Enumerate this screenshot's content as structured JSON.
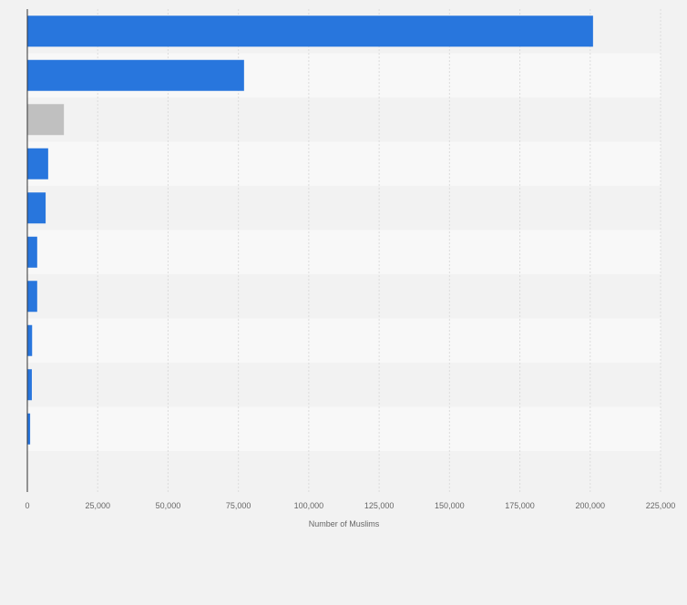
{
  "chart_data": {
    "type": "bar",
    "orientation": "horizontal",
    "categories": [
      "",
      "",
      "",
      "",
      "",
      "",
      "",
      "",
      "",
      ""
    ],
    "values": [
      201000,
      77000,
      13000,
      7400,
      6500,
      3500,
      3500,
      1700,
      1600,
      1000
    ],
    "highlight_index": 2,
    "title": "",
    "xlabel": "Number of Muslims",
    "ylabel": "",
    "xlim": [
      0,
      225000
    ],
    "xticks": [
      0,
      25000,
      50000,
      75000,
      100000,
      125000,
      150000,
      175000,
      200000,
      225000
    ],
    "xtick_labels": [
      "0",
      "25,000",
      "50,000",
      "75,000",
      "100,000",
      "125,000",
      "150,000",
      "175,000",
      "200,000",
      "225,000"
    ],
    "grid": true,
    "legend": "none",
    "colors": {
      "bar": "#2876dd",
      "highlight": "#c0c0c0",
      "band_dark": "#f2f2f2",
      "band_light": "#f8f8f8",
      "grid": "#dcdcdc",
      "axis": "#333333",
      "tick_text": "#666666"
    }
  }
}
